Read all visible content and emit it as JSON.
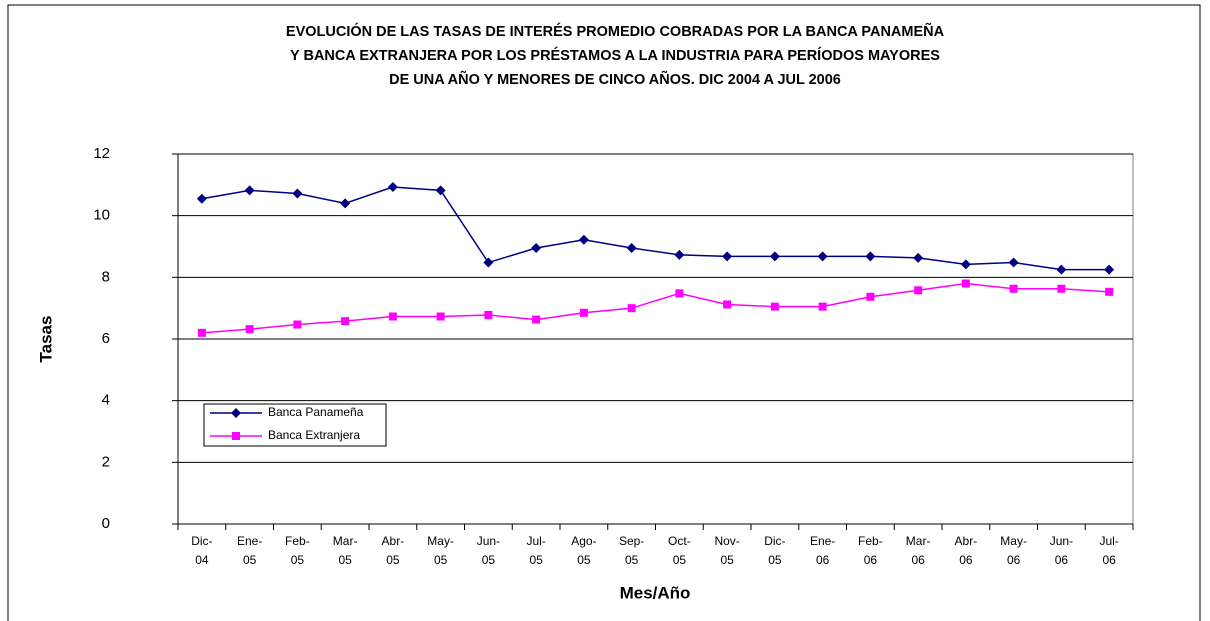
{
  "chart_data": {
    "type": "line",
    "title": [
      "EVOLUCIÓN DE LAS TASAS DE INTERÉS PROMEDIO COBRADAS POR  LA BANCA PANAMEÑA",
      "Y BANCA EXTRANJERA POR LOS PRÉSTAMOS A LA INDUSTRIA PARA PERÍODOS MAYORES",
      "DE UNA AÑO Y MENORES DE CINCO AÑOS. DIC 2004 A JUL 2006"
    ],
    "x_label": "Mes/Año",
    "y_label": "Tasas",
    "categories": [
      [
        "Dic-",
        "04"
      ],
      [
        "Ene-",
        "05"
      ],
      [
        "Feb-",
        "05"
      ],
      [
        "Mar-",
        "05"
      ],
      [
        "Abr-",
        "05"
      ],
      [
        "May-",
        "05"
      ],
      [
        "Jun-",
        "05"
      ],
      [
        "Jul-",
        "05"
      ],
      [
        "Ago-",
        "05"
      ],
      [
        "Sep-",
        "05"
      ],
      [
        "Oct-",
        "05"
      ],
      [
        "Nov-",
        "05"
      ],
      [
        "Dic-",
        "05"
      ],
      [
        "Ene-",
        "06"
      ],
      [
        "Feb-",
        "06"
      ],
      [
        "Mar-",
        "06"
      ],
      [
        "Abr-",
        "06"
      ],
      [
        "May-",
        "06"
      ],
      [
        "Jun-",
        "06"
      ],
      [
        "Jul-",
        "06"
      ]
    ],
    "series": [
      {
        "name": "Banca Panameña",
        "color": "#000080",
        "marker": "diamond",
        "values": [
          10.55,
          10.82,
          10.72,
          10.4,
          10.93,
          10.82,
          8.48,
          8.95,
          9.22,
          8.95,
          8.73,
          8.68,
          8.68,
          8.68,
          8.68,
          8.63,
          8.42,
          8.48,
          8.25,
          8.25
        ]
      },
      {
        "name": "Banca Extranjera",
        "color": "#ff00ff",
        "marker": "square",
        "values": [
          6.2,
          6.32,
          6.47,
          6.58,
          6.73,
          6.73,
          6.78,
          6.63,
          6.85,
          7.0,
          7.48,
          7.12,
          7.05,
          7.05,
          7.37,
          7.58,
          7.8,
          7.63,
          7.63,
          7.53
        ]
      }
    ],
    "ylim": [
      0,
      12
    ],
    "yticks": [
      0,
      2,
      4,
      6,
      8,
      10,
      12
    ],
    "grid": true,
    "legend": "left"
  }
}
